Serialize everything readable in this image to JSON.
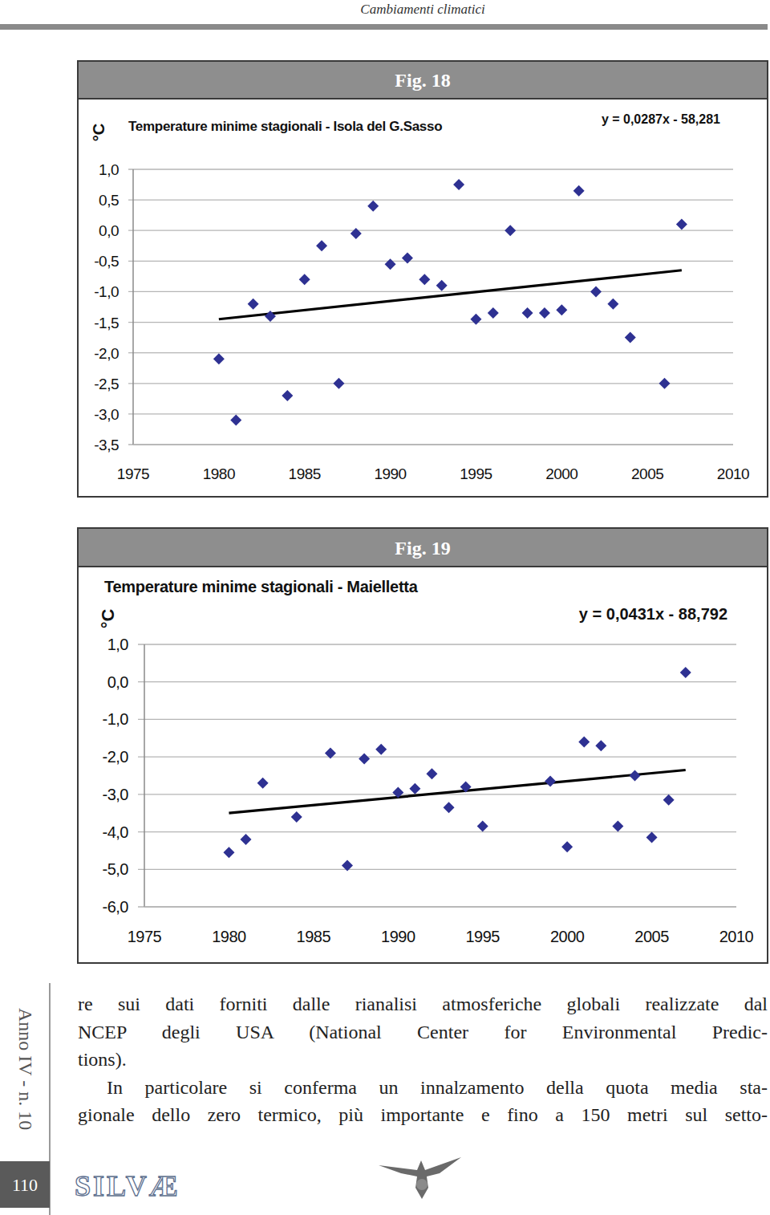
{
  "page": {
    "header": "Cambiamenti climatici",
    "figure_labels": [
      "Fig. 18",
      "Fig. 19"
    ],
    "body": [
      {
        "lines": [
          "re sui dati forniti dalle rianalisi atmosferiche globali realizzate dal",
          "NCEP degli USA (National Center for Environmental Predic-",
          "tions)."
        ]
      },
      {
        "lines": [
          "In particolare si conferma un innalzamento della quota media sta-",
          "gionale dello zero termico, più importante e fino a 150 metri sul setto-"
        ]
      }
    ],
    "side_label": "Anno IV - n. 10",
    "page_number": "110",
    "journal": "SILVÆ"
  },
  "chart_data": [
    {
      "type": "scatter",
      "title": "Temperature minime stagionali - Isola del G.Sasso",
      "y_label": "°C",
      "annotations": [
        "y = 0,0287x - 58,281"
      ],
      "xlim": [
        1975,
        2010
      ],
      "xticks": [
        1975,
        1980,
        1985,
        1990,
        1995,
        2000,
        2005,
        2010
      ],
      "ylim": [
        -3.5,
        1.0
      ],
      "yticks": [
        {
          "value": 1.0,
          "label": "1,0"
        },
        {
          "value": 0.5,
          "label": "0,5"
        },
        {
          "value": 0.0,
          "label": "0,0"
        },
        {
          "value": -0.5,
          "label": "-0,5"
        },
        {
          "value": -1.0,
          "label": "-1,0"
        },
        {
          "value": -1.5,
          "label": "-1,5"
        },
        {
          "value": -2.0,
          "label": "-2,0"
        },
        {
          "value": -2.5,
          "label": "-2,5"
        },
        {
          "value": -3.0,
          "label": "-3,0"
        },
        {
          "value": -3.5,
          "label": "-3,5"
        }
      ],
      "grid": true,
      "series": [
        {
          "type": "scatter",
          "color": "#2e3192",
          "marker": "diamond",
          "x": [
            1980,
            1981,
            1982,
            1983,
            1984,
            1985,
            1986,
            1987,
            1988,
            1989,
            1990,
            1991,
            1992,
            1993,
            1994,
            1995,
            1996,
            1997,
            1998,
            1999,
            2000,
            2001,
            2002,
            2003,
            2004,
            2006,
            2007
          ],
          "values": [
            -2.1,
            -3.1,
            -1.2,
            -1.4,
            -2.7,
            -0.8,
            -0.25,
            -2.5,
            -0.05,
            0.4,
            -0.55,
            -0.45,
            -0.8,
            -0.9,
            0.75,
            -1.45,
            -1.35,
            0.0,
            -1.35,
            -1.35,
            -1.3,
            0.65,
            -1.0,
            -1.2,
            -1.75,
            -2.5,
            0.1
          ]
        },
        {
          "type": "line",
          "color": "#000000",
          "line_style": "solid",
          "x": [
            1980,
            2007
          ],
          "values": [
            -1.45,
            -0.65
          ]
        }
      ]
    },
    {
      "type": "scatter",
      "title": "Temperature minime stagionali - Maielletta",
      "y_label": "°C",
      "annotations": [
        "y = 0,0431x - 88,792"
      ],
      "xlim": [
        1975,
        2010
      ],
      "xticks": [
        1975,
        1980,
        1985,
        1990,
        1995,
        2000,
        2005,
        2010
      ],
      "ylim": [
        -6.0,
        1.0
      ],
      "yticks": [
        {
          "value": 1.0,
          "label": "1,0"
        },
        {
          "value": 0.0,
          "label": "0,0"
        },
        {
          "value": -1.0,
          "label": "-1,0"
        },
        {
          "value": -2.0,
          "label": "-2,0"
        },
        {
          "value": -3.0,
          "label": "-3,0"
        },
        {
          "value": -4.0,
          "label": "-4,0"
        },
        {
          "value": -5.0,
          "label": "-5,0"
        },
        {
          "value": -6.0,
          "label": "-6,0"
        }
      ],
      "grid": true,
      "series": [
        {
          "type": "scatter",
          "color": "#2e3192",
          "marker": "diamond",
          "x": [
            1980,
            1981,
            1982,
            1984,
            1986,
            1987,
            1988,
            1989,
            1990,
            1991,
            1992,
            1993,
            1994,
            1995,
            1999,
            2000,
            2001,
            2002,
            2003,
            2004,
            2005,
            2006,
            2007
          ],
          "values": [
            -4.55,
            -4.2,
            -2.7,
            -3.6,
            -1.9,
            -4.9,
            -2.05,
            -1.8,
            -2.95,
            -2.85,
            -2.45,
            -3.35,
            -2.8,
            -3.85,
            -2.65,
            -4.4,
            -1.6,
            -1.7,
            -3.85,
            -2.5,
            -4.15,
            -3.15,
            0.25
          ]
        },
        {
          "type": "line",
          "color": "#000000",
          "line_style": "solid",
          "x": [
            1980,
            2007
          ],
          "values": [
            -3.5,
            -2.35
          ]
        }
      ]
    }
  ]
}
